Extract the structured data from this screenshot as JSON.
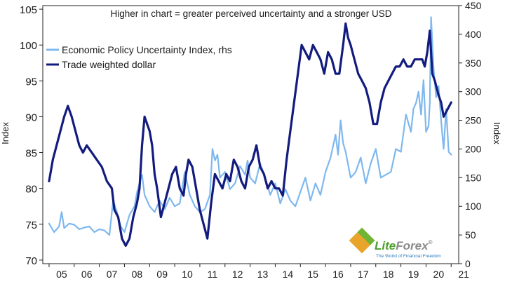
{
  "chart_data": {
    "type": "line",
    "title": "Higher in chart = greater perceived uncertainty and a stronger USD",
    "xlabel": "",
    "ylabel_left": "Index",
    "ylabel_right": "Index",
    "x_tick_labels": [
      "05",
      "06",
      "07",
      "08",
      "09",
      "10",
      "11",
      "12",
      "13",
      "14",
      "15",
      "16",
      "17",
      "18",
      "19",
      "20",
      "21"
    ],
    "x_range": [
      2004.75,
      2021.3
    ],
    "ylim_left": [
      69.5,
      105.5
    ],
    "ylim_right": [
      0,
      450
    ],
    "y_ticks_left": [
      70,
      75,
      80,
      85,
      90,
      95,
      100,
      105
    ],
    "y_ticks_right": [
      0,
      50,
      100,
      150,
      200,
      250,
      300,
      350,
      400,
      450
    ],
    "legend_position": "top-left",
    "series": [
      {
        "name": "Economic Policy Uncertainty Index, rhs",
        "axis": "right",
        "color": "#7fb8ee",
        "x": [
          2005.0,
          2005.2,
          2005.4,
          2005.5,
          2005.6,
          2005.8,
          2006.0,
          2006.2,
          2006.4,
          2006.6,
          2006.8,
          2007.0,
          2007.2,
          2007.4,
          2007.55,
          2007.7,
          2007.85,
          2008.0,
          2008.2,
          2008.4,
          2008.5,
          2008.6,
          2008.7,
          2008.8,
          2008.9,
          2009.0,
          2009.2,
          2009.4,
          2009.6,
          2009.8,
          2010.0,
          2010.2,
          2010.4,
          2010.6,
          2010.8,
          2011.0,
          2011.2,
          2011.4,
          2011.5,
          2011.6,
          2011.7,
          2011.8,
          2012.0,
          2012.2,
          2012.4,
          2012.6,
          2012.8,
          2012.9,
          2013.0,
          2013.2,
          2013.4,
          2013.6,
          2013.8,
          2014.0,
          2014.2,
          2014.4,
          2014.6,
          2014.8,
          2015.0,
          2015.2,
          2015.4,
          2015.6,
          2015.8,
          2016.0,
          2016.2,
          2016.4,
          2016.5,
          2016.6,
          2016.7,
          2016.8,
          2017.0,
          2017.2,
          2017.4,
          2017.6,
          2017.8,
          2018.0,
          2018.2,
          2018.4,
          2018.6,
          2018.8,
          2019.0,
          2019.2,
          2019.4,
          2019.5,
          2019.6,
          2019.7,
          2019.8,
          2019.9,
          2020.0,
          2020.1,
          2020.15,
          2020.2,
          2020.3,
          2020.4,
          2020.5,
          2020.6,
          2020.7,
          2020.8,
          2020.9,
          2021.0
        ],
        "values": [
          70,
          55,
          65,
          90,
          62,
          70,
          68,
          60,
          63,
          65,
          55,
          60,
          58,
          50,
          110,
          90,
          65,
          55,
          85,
          100,
          125,
          140,
          155,
          120,
          110,
          100,
          90,
          110,
          95,
          115,
          100,
          105,
          160,
          120,
          100,
          90,
          95,
          120,
          200,
          180,
          190,
          150,
          160,
          130,
          140,
          170,
          155,
          180,
          150,
          140,
          175,
          150,
          120,
          140,
          105,
          130,
          110,
          100,
          125,
          150,
          110,
          140,
          120,
          160,
          185,
          225,
          190,
          250,
          210,
          195,
          150,
          160,
          185,
          140,
          175,
          200,
          150,
          155,
          160,
          200,
          195,
          260,
          230,
          270,
          280,
          300,
          260,
          320,
          230,
          240,
          280,
          430,
          340,
          290,
          310,
          250,
          200,
          270,
          195,
          190
        ]
      },
      {
        "name": "Trade weighted dollar",
        "axis": "left",
        "color": "#131c7e",
        "x": [
          2005.0,
          2005.15,
          2005.3,
          2005.45,
          2005.6,
          2005.75,
          2005.9,
          2006.05,
          2006.2,
          2006.35,
          2006.5,
          2006.7,
          2006.9,
          2007.1,
          2007.3,
          2007.5,
          2007.6,
          2007.75,
          2007.9,
          2008.05,
          2008.2,
          2008.35,
          2008.5,
          2008.6,
          2008.7,
          2008.8,
          2008.9,
          2009.0,
          2009.1,
          2009.2,
          2009.3,
          2009.45,
          2009.6,
          2009.75,
          2009.9,
          2010.05,
          2010.2,
          2010.35,
          2010.45,
          2010.55,
          2010.7,
          2010.85,
          2011.0,
          2011.15,
          2011.3,
          2011.45,
          2011.6,
          2011.75,
          2011.9,
          2012.05,
          2012.2,
          2012.35,
          2012.5,
          2012.65,
          2012.8,
          2012.95,
          2013.1,
          2013.25,
          2013.4,
          2013.55,
          2013.7,
          2013.85,
          2014.0,
          2014.15,
          2014.3,
          2014.45,
          2014.6,
          2014.75,
          2014.9,
          2015.05,
          2015.2,
          2015.35,
          2015.5,
          2015.65,
          2015.8,
          2015.95,
          2016.1,
          2016.25,
          2016.4,
          2016.55,
          2016.7,
          2016.8,
          2016.9,
          2017.0,
          2017.15,
          2017.3,
          2017.45,
          2017.6,
          2017.75,
          2017.9,
          2018.05,
          2018.2,
          2018.35,
          2018.5,
          2018.65,
          2018.8,
          2018.95,
          2019.1,
          2019.25,
          2019.4,
          2019.55,
          2019.7,
          2019.85,
          2019.95,
          2020.05,
          2020.15,
          2020.25,
          2020.35,
          2020.5,
          2020.6,
          2020.7,
          2020.85,
          2021.0
        ],
        "values": [
          81,
          84,
          86,
          88,
          90,
          91.5,
          90,
          88,
          86,
          85,
          86,
          85,
          84,
          83,
          81,
          80,
          77,
          76,
          73,
          72,
          73,
          76,
          78,
          80,
          86,
          90,
          89,
          88,
          86,
          82,
          80,
          76,
          78,
          80,
          82,
          83,
          80,
          79,
          82,
          84,
          83,
          80,
          77,
          75,
          73,
          78,
          82,
          81,
          80,
          82,
          81,
          84,
          83,
          81,
          80,
          83,
          84,
          86,
          83,
          82,
          80,
          81,
          80,
          80,
          79,
          84,
          88,
          92,
          96,
          100,
          99,
          98,
          100,
          99,
          98,
          96,
          99,
          98,
          96,
          96,
          100,
          103,
          101,
          100,
          98,
          96,
          95,
          94,
          92,
          89,
          89,
          92,
          94,
          95,
          96,
          97,
          97,
          98,
          97,
          97,
          98,
          98,
          98,
          97,
          99,
          102,
          96,
          95,
          93,
          92,
          90,
          91,
          92
        ]
      }
    ]
  },
  "logo": {
    "brand": "LiteForex",
    "brand_lite": "Lite",
    "brand_forex": "Forex",
    "registered": "®",
    "tagline": "The World of Financial Freedom"
  }
}
